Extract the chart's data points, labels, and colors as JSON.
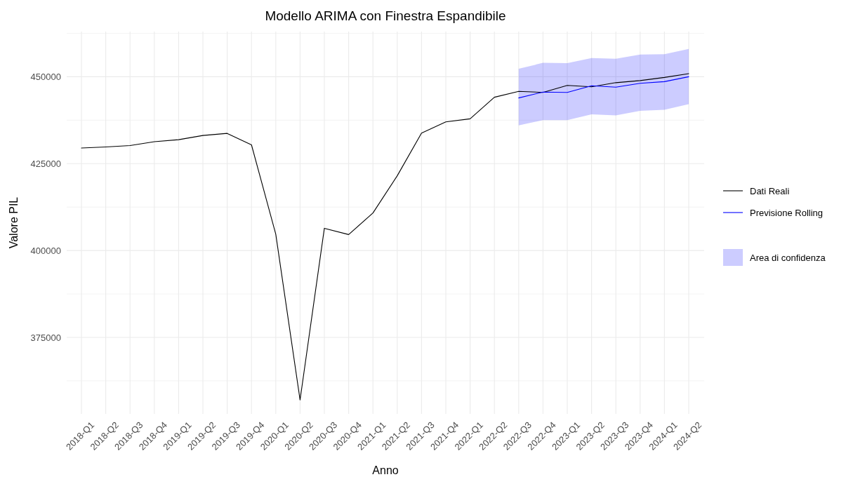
{
  "chart_data": {
    "type": "line",
    "title": "Modello ARIMA con Finestra Espandibile",
    "xlabel": "Anno",
    "ylabel": "Valore PIL",
    "categories": [
      "2018-Q1",
      "2018-Q2",
      "2018-Q3",
      "2018-Q4",
      "2019-Q1",
      "2019-Q2",
      "2019-Q3",
      "2019-Q4",
      "2020-Q1",
      "2020-Q2",
      "2020-Q3",
      "2020-Q4",
      "2021-Q1",
      "2021-Q2",
      "2021-Q3",
      "2021-Q4",
      "2022-Q1",
      "2022-Q2",
      "2022-Q3",
      "2022-Q4",
      "2023-Q1",
      "2023-Q2",
      "2023-Q3",
      "2023-Q4",
      "2024-Q1",
      "2024-Q2"
    ],
    "series": [
      {
        "name": "Dati Reali",
        "color": "#000000",
        "values": [
          429500,
          429800,
          430200,
          431300,
          431900,
          433100,
          433700,
          430400,
          404700,
          357000,
          406400,
          404600,
          410800,
          421500,
          433800,
          437000,
          437900,
          444100,
          445800,
          445500,
          447500,
          447100,
          448300,
          448900,
          449800,
          450900
        ]
      },
      {
        "name": "Previsione Rolling",
        "color": "#0000ff",
        "values": [
          null,
          null,
          null,
          null,
          null,
          null,
          null,
          null,
          null,
          null,
          null,
          null,
          null,
          null,
          null,
          null,
          null,
          null,
          443900,
          445600,
          445500,
          447400,
          447000,
          448100,
          448600,
          450000
        ],
        "lower": [
          null,
          null,
          null,
          null,
          null,
          null,
          null,
          null,
          null,
          null,
          null,
          null,
          null,
          null,
          null,
          null,
          null,
          null,
          436000,
          437500,
          437500,
          439200,
          438900,
          440200,
          440500,
          442100
        ],
        "upper": [
          null,
          null,
          null,
          null,
          null,
          null,
          null,
          null,
          null,
          null,
          null,
          null,
          null,
          null,
          null,
          null,
          null,
          null,
          452300,
          454000,
          453900,
          455400,
          455200,
          456400,
          456500,
          458000
        ]
      }
    ],
    "annotations": [
      "Area di confidenza"
    ],
    "ylim": [
      353000,
      463000
    ],
    "yticks": [
      375000,
      400000,
      425000,
      450000
    ],
    "grid": true,
    "legend": "right"
  }
}
